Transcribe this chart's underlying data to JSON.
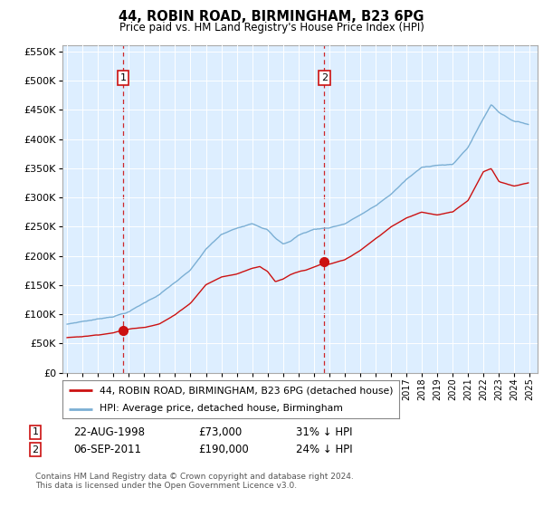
{
  "title": "44, ROBIN ROAD, BIRMINGHAM, B23 6PG",
  "subtitle": "Price paid vs. HM Land Registry's House Price Index (HPI)",
  "hpi_color": "#7bafd4",
  "price_color": "#cc1111",
  "dashed_color": "#cc1111",
  "background_color": "#ddeeff",
  "grid_color": "#ffffff",
  "ylim": [
    0,
    560000
  ],
  "yticks": [
    0,
    50000,
    100000,
    150000,
    200000,
    250000,
    300000,
    350000,
    400000,
    450000,
    500000,
    550000
  ],
  "xlim_start": 1994.7,
  "xlim_end": 2025.5,
  "sale1_x": 1998.64,
  "sale1_y": 73000,
  "sale1_label": "1",
  "sale1_date": "22-AUG-1998",
  "sale1_price": "£73,000",
  "sale1_hpi": "31% ↓ HPI",
  "sale2_x": 2011.67,
  "sale2_y": 190000,
  "sale2_label": "2",
  "sale2_date": "06-SEP-2011",
  "sale2_price": "£190,000",
  "sale2_hpi": "24% ↓ HPI",
  "legend_line1": "44, ROBIN ROAD, BIRMINGHAM, B23 6PG (detached house)",
  "legend_line2": "HPI: Average price, detached house, Birmingham",
  "footnote": "Contains HM Land Registry data © Crown copyright and database right 2024.\nThis data is licensed under the Open Government Licence v3.0.",
  "hpi_anchors_x": [
    1995.0,
    1996.0,
    1997.0,
    1998.0,
    1999.0,
    2000.0,
    2001.0,
    2002.0,
    2003.0,
    2004.0,
    2005.0,
    2006.0,
    2007.0,
    2008.0,
    2008.5,
    2009.0,
    2009.5,
    2010.0,
    2011.0,
    2012.0,
    2013.0,
    2014.0,
    2015.0,
    2016.0,
    2017.0,
    2018.0,
    2019.0,
    2020.0,
    2021.0,
    2022.0,
    2022.5,
    2023.0,
    2024.0,
    2024.9
  ],
  "hpi_anchors_y": [
    83000,
    88000,
    92000,
    97000,
    105000,
    120000,
    135000,
    155000,
    175000,
    210000,
    235000,
    245000,
    255000,
    245000,
    230000,
    220000,
    225000,
    235000,
    245000,
    248000,
    255000,
    270000,
    285000,
    305000,
    330000,
    350000,
    355000,
    355000,
    385000,
    435000,
    458000,
    445000,
    430000,
    425000
  ],
  "price_anchors_x": [
    1995.0,
    1996.0,
    1997.0,
    1998.0,
    1998.64,
    1999.0,
    2000.0,
    2001.0,
    2002.0,
    2003.0,
    2004.0,
    2005.0,
    2006.0,
    2007.0,
    2007.5,
    2008.0,
    2008.5,
    2009.0,
    2009.5,
    2010.0,
    2010.5,
    2011.0,
    2011.67,
    2012.0,
    2013.0,
    2014.0,
    2015.0,
    2016.0,
    2017.0,
    2018.0,
    2019.0,
    2020.0,
    2021.0,
    2022.0,
    2022.5,
    2023.0,
    2024.0,
    2024.9
  ],
  "price_anchors_y": [
    60000,
    62000,
    65000,
    69000,
    73000,
    75000,
    78000,
    85000,
    100000,
    120000,
    152000,
    165000,
    170000,
    180000,
    183000,
    175000,
    158000,
    162000,
    170000,
    175000,
    178000,
    183000,
    190000,
    188000,
    195000,
    210000,
    230000,
    250000,
    265000,
    275000,
    270000,
    275000,
    295000,
    345000,
    350000,
    328000,
    320000,
    325000
  ]
}
